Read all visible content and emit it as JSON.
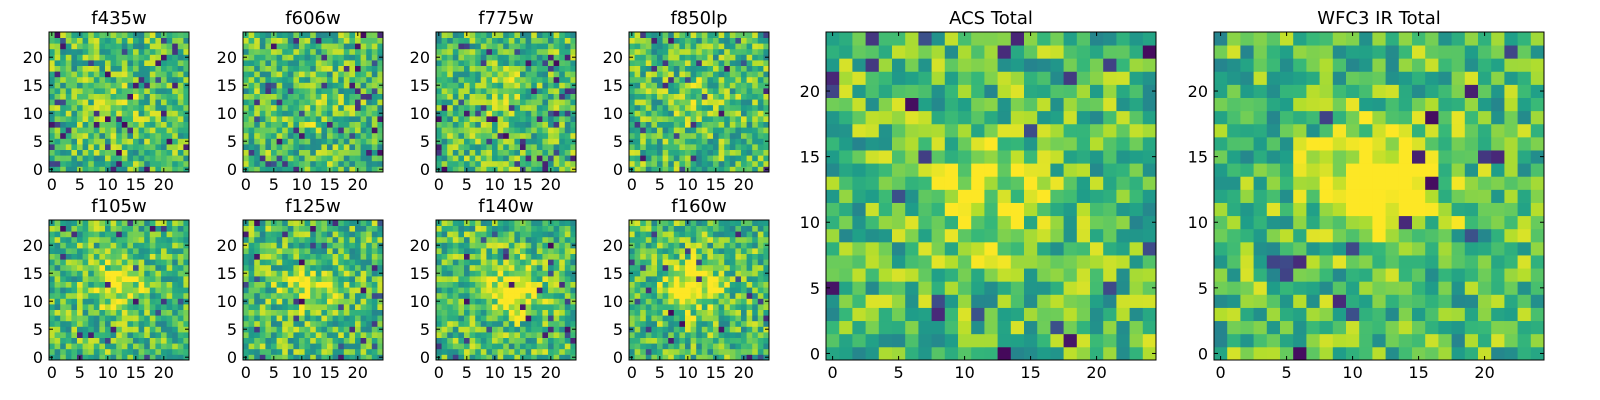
{
  "chart_data": [
    {
      "type": "heatmap",
      "title": "f435w",
      "xticks": [
        "0",
        "5",
        "10",
        "15",
        "20"
      ],
      "yticks": [
        "0",
        "5",
        "10",
        "15",
        "20"
      ],
      "xlim": [
        -0.5,
        24.5
      ],
      "ylim": [
        -0.5,
        24.5
      ],
      "grid": [
        25,
        25
      ],
      "colormap": "viridis",
      "seed": 11,
      "peak": [
        12,
        12
      ],
      "peak_strength": 0.1,
      "holes": 0.06
    },
    {
      "type": "heatmap",
      "title": "f606w",
      "xticks": [
        "0",
        "5",
        "10",
        "15",
        "20"
      ],
      "yticks": [
        "0",
        "5",
        "10",
        "15",
        "20"
      ],
      "xlim": [
        -0.5,
        24.5
      ],
      "ylim": [
        -0.5,
        24.5
      ],
      "grid": [
        25,
        25
      ],
      "colormap": "viridis",
      "seed": 23,
      "peak": [
        11,
        11
      ],
      "peak_strength": 0.12,
      "holes": 0.06
    },
    {
      "type": "heatmap",
      "title": "f775w",
      "xticks": [
        "0",
        "5",
        "10",
        "15",
        "20"
      ],
      "yticks": [
        "0",
        "5",
        "10",
        "15",
        "20"
      ],
      "xlim": [
        -0.5,
        24.5
      ],
      "ylim": [
        -0.5,
        24.5
      ],
      "grid": [
        25,
        25
      ],
      "colormap": "viridis",
      "seed": 37,
      "peak": [
        12,
        13
      ],
      "peak_strength": 0.1,
      "holes": 0.07
    },
    {
      "type": "heatmap",
      "title": "f850lp",
      "xticks": [
        "0",
        "5",
        "10",
        "15",
        "20"
      ],
      "yticks": [
        "0",
        "5",
        "10",
        "15",
        "20"
      ],
      "xlim": [
        -0.5,
        24.5
      ],
      "ylim": [
        -0.5,
        24.5
      ],
      "grid": [
        25,
        25
      ],
      "colormap": "viridis",
      "seed": 41,
      "peak": [
        12,
        12
      ],
      "peak_strength": 0.1,
      "holes": 0.06
    },
    {
      "type": "heatmap",
      "title": "f105w",
      "xticks": [
        "0",
        "5",
        "10",
        "15",
        "20"
      ],
      "yticks": [
        "0",
        "5",
        "10",
        "15",
        "20"
      ],
      "xlim": [
        -0.5,
        24.5
      ],
      "ylim": [
        -0.5,
        24.5
      ],
      "grid": [
        25,
        25
      ],
      "colormap": "viridis",
      "seed": 53,
      "peak": [
        12,
        13
      ],
      "peak_strength": 0.3,
      "holes": 0.04
    },
    {
      "type": "heatmap",
      "title": "f125w",
      "xticks": [
        "0",
        "5",
        "10",
        "15",
        "20"
      ],
      "yticks": [
        "0",
        "5",
        "10",
        "15",
        "20"
      ],
      "xlim": [
        -0.5,
        24.5
      ],
      "ylim": [
        -0.5,
        24.5
      ],
      "grid": [
        25,
        25
      ],
      "colormap": "viridis",
      "seed": 67,
      "peak": [
        11,
        12
      ],
      "peak_strength": 0.25,
      "holes": 0.04
    },
    {
      "type": "heatmap",
      "title": "f140w",
      "xticks": [
        "0",
        "5",
        "10",
        "15",
        "20"
      ],
      "yticks": [
        "0",
        "5",
        "10",
        "15",
        "20"
      ],
      "xlim": [
        -0.5,
        24.5
      ],
      "ylim": [
        -0.5,
        24.5
      ],
      "grid": [
        25,
        25
      ],
      "colormap": "viridis",
      "seed": 79,
      "peak": [
        13,
        12
      ],
      "peak_strength": 0.35,
      "holes": 0.04
    },
    {
      "type": "heatmap",
      "title": "f160w",
      "xticks": [
        "0",
        "5",
        "10",
        "15",
        "20"
      ],
      "yticks": [
        "0",
        "5",
        "10",
        "15",
        "20"
      ],
      "xlim": [
        -0.5,
        24.5
      ],
      "ylim": [
        -0.5,
        24.5
      ],
      "grid": [
        25,
        25
      ],
      "colormap": "viridis",
      "seed": 83,
      "peak": [
        11,
        13
      ],
      "peak_strength": 0.4,
      "holes": 0.04
    },
    {
      "type": "heatmap",
      "title": "ACS Total",
      "xticks": [
        "0",
        "5",
        "10",
        "15",
        "20"
      ],
      "yticks": [
        "0",
        "5",
        "10",
        "15",
        "20"
      ],
      "xlim": [
        -0.5,
        24.5
      ],
      "ylim": [
        -0.5,
        24.5
      ],
      "grid": [
        25,
        25
      ],
      "colormap": "viridis",
      "seed": 97,
      "peak": [
        12,
        12
      ],
      "peak_strength": 0.25,
      "holes": 0.04
    },
    {
      "type": "heatmap",
      "title": "WFC3 IR Total",
      "xticks": [
        "0",
        "5",
        "10",
        "15",
        "20"
      ],
      "yticks": [
        "0",
        "5",
        "10",
        "15",
        "20"
      ],
      "xlim": [
        -0.5,
        24.5
      ],
      "ylim": [
        -0.5,
        24.5
      ],
      "grid": [
        25,
        25
      ],
      "colormap": "viridis",
      "seed": 101,
      "peak": [
        12,
        13
      ],
      "peak_strength": 0.55,
      "holes": 0.03
    }
  ]
}
